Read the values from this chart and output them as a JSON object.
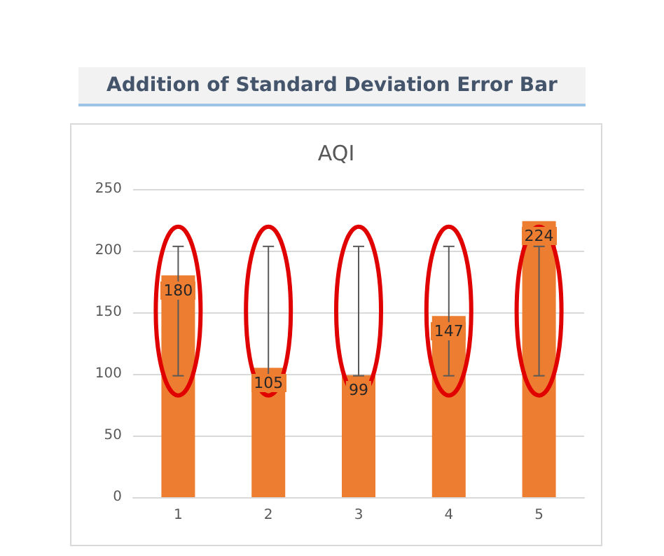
{
  "chart_data": {
    "type": "bar",
    "title": "Addition of Standard Deviation Error Bar",
    "subtitle": "AQI",
    "categories": [
      "1",
      "2",
      "3",
      "4",
      "5"
    ],
    "values": [
      180,
      105,
      99,
      147,
      224
    ],
    "errors": [
      [
        98.5,
        203.5
      ],
      [
        98.5,
        203.5
      ],
      [
        98.5,
        203.5
      ],
      [
        98.5,
        203.5
      ],
      [
        98.5,
        203.5
      ]
    ],
    "color": "#ed7d31",
    "ylim": [
      0,
      250
    ],
    "yticks": [
      0,
      50,
      100,
      150,
      200,
      250
    ],
    "grid": "y",
    "data_labels": true
  }
}
